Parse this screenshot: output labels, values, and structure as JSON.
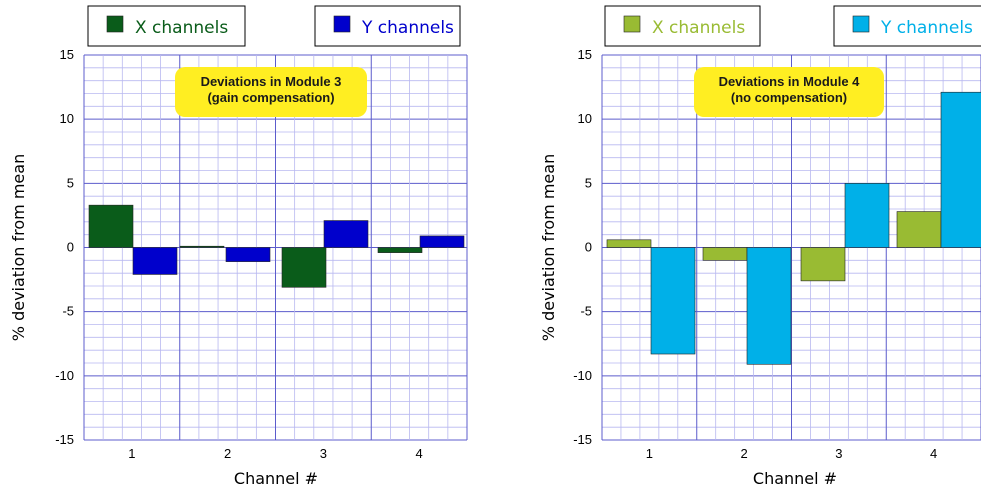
{
  "chart_data": [
    {
      "type": "bar",
      "annotation_lines": [
        "Deviations in Module 3",
        "(gain compensation)"
      ],
      "xlabel": "Channel #",
      "ylabel": "% deviation from mean",
      "categories": [
        "1",
        "2",
        "3",
        "4"
      ],
      "ylim": [
        -15,
        15
      ],
      "yticks": [
        "15",
        "10",
        "5",
        "0",
        "-5",
        "-10",
        "-15"
      ],
      "grid": true,
      "legend_position": "top",
      "series": [
        {
          "name": "X channels",
          "color": "#0a5c1a",
          "values": [
            3.3,
            0.1,
            -3.1,
            -0.4
          ]
        },
        {
          "name": "Y channels",
          "color": "#0000cc",
          "values": [
            -2.1,
            -1.1,
            2.1,
            0.9
          ]
        }
      ]
    },
    {
      "type": "bar",
      "annotation_lines": [
        "Deviations in Module 4",
        "(no compensation)"
      ],
      "xlabel": "Channel #",
      "ylabel": "% deviation from mean",
      "categories": [
        "1",
        "2",
        "3",
        "4"
      ],
      "ylim": [
        -15,
        15
      ],
      "yticks": [
        "15",
        "10",
        "5",
        "0",
        "-5",
        "-10",
        "-15"
      ],
      "grid": true,
      "legend_position": "top",
      "series": [
        {
          "name": "X channels",
          "color": "#99bb33",
          "values": [
            0.6,
            -1.0,
            -2.6,
            2.8
          ]
        },
        {
          "name": "Y channels",
          "color": "#00b0e8",
          "values": [
            -8.3,
            -9.1,
            5.0,
            12.1
          ]
        }
      ]
    }
  ],
  "colors": {
    "grid": "#b8b8f0",
    "major_grid": "#5c5ccc",
    "annotation_bg": "#ffee22"
  }
}
